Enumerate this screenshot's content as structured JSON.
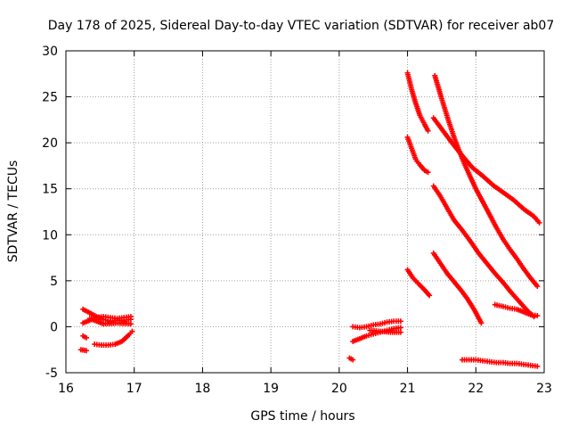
{
  "chart_data": {
    "type": "scatter",
    "title": "Day 178 of 2025, Sidereal Day-to-day VTEC variation (SDTVAR) for receiver ab07",
    "xlabel": "GPS time / hours",
    "ylabel": "SDTVAR / TECUs",
    "xlim": [
      16,
      23
    ],
    "ylim": [
      -5,
      30
    ],
    "xticks": [
      16,
      17,
      18,
      19,
      20,
      21,
      22,
      23
    ],
    "yticks": [
      -5,
      0,
      5,
      10,
      15,
      20,
      25,
      30
    ],
    "xtick_labels": [
      "16",
      "17",
      "18",
      "19",
      "20",
      "21",
      "22",
      "23"
    ],
    "ytick_labels": [
      "-5",
      "0",
      "5",
      "10",
      "15",
      "20",
      "25",
      "30"
    ],
    "grid": true,
    "marker": "+",
    "color": "#ff0000",
    "series": [
      {
        "name": "seg1",
        "x": [
          16.25,
          16.35,
          16.45,
          16.55,
          16.65,
          16.75,
          16.85,
          16.95
        ],
        "y": [
          0.4,
          0.7,
          1.0,
          1.1,
          1.0,
          0.9,
          1.0,
          1.1
        ]
      },
      {
        "name": "seg2",
        "x": [
          16.25,
          16.35,
          16.45,
          16.55,
          16.65,
          16.75,
          16.85,
          16.95
        ],
        "y": [
          1.9,
          1.5,
          1.1,
          0.8,
          0.6,
          0.7,
          0.7,
          0.8
        ]
      },
      {
        "name": "seg3",
        "x": [
          16.42,
          16.52,
          16.62,
          16.72,
          16.82,
          16.92,
          16.97
        ],
        "y": [
          -1.9,
          -2.0,
          -2.0,
          -1.9,
          -1.6,
          -0.9,
          -0.5
        ]
      },
      {
        "name": "seg4",
        "x": [
          16.25,
          16.3
        ],
        "y": [
          -1.0,
          -1.2
        ]
      },
      {
        "name": "seg5",
        "x": [
          16.22,
          16.3
        ],
        "y": [
          -2.5,
          -2.6
        ]
      },
      {
        "name": "seg6",
        "x": [
          16.35,
          16.55,
          16.75,
          16.95
        ],
        "y": [
          0.9,
          0.3,
          0.4,
          0.3
        ]
      },
      {
        "name": "seg7",
        "x": [
          20.2,
          20.3,
          20.4,
          20.5,
          20.6,
          20.7,
          20.8,
          20.9
        ],
        "y": [
          0.0,
          -0.1,
          0.0,
          0.2,
          0.3,
          0.5,
          0.6,
          0.6
        ]
      },
      {
        "name": "seg8",
        "x": [
          20.2,
          20.3,
          20.4,
          20.5,
          20.6,
          20.7,
          20.8,
          20.9
        ],
        "y": [
          -1.6,
          -1.3,
          -1.0,
          -0.8,
          -0.6,
          -0.4,
          -0.2,
          -0.1
        ]
      },
      {
        "name": "seg9",
        "x": [
          20.45,
          20.6,
          20.75,
          20.9
        ],
        "y": [
          -0.4,
          -0.5,
          -0.6,
          -0.6
        ]
      },
      {
        "name": "seg10",
        "x": [
          20.15,
          20.2
        ],
        "y": [
          -3.4,
          -3.6
        ]
      },
      {
        "name": "seg11",
        "x": [
          21.0,
          21.06,
          21.12,
          21.18,
          21.25,
          21.3
        ],
        "y": [
          27.6,
          25.8,
          24.3,
          23.0,
          22.0,
          21.3
        ]
      },
      {
        "name": "seg12",
        "x": [
          21.0,
          21.06,
          21.12,
          21.18,
          21.25,
          21.3
        ],
        "y": [
          20.6,
          19.4,
          18.2,
          17.6,
          17.0,
          16.8
        ]
      },
      {
        "name": "seg13",
        "x": [
          21.0,
          21.08,
          21.17,
          21.25,
          21.32
        ],
        "y": [
          6.2,
          5.3,
          4.6,
          4.0,
          3.4
        ]
      },
      {
        "name": "seg14",
        "x": [
          21.4,
          21.5,
          21.6,
          21.7,
          21.8,
          21.9,
          22.0,
          22.1,
          22.2,
          22.3,
          22.4,
          22.5,
          22.6,
          22.7,
          22.8,
          22.9
        ],
        "y": [
          27.3,
          24.8,
          22.4,
          20.2,
          18.3,
          16.6,
          15.0,
          13.6,
          12.2,
          10.8,
          9.5,
          8.4,
          7.4,
          6.3,
          5.3,
          4.4
        ]
      },
      {
        "name": "seg15",
        "x": [
          21.38,
          21.5,
          21.65,
          21.8,
          21.95,
          22.1,
          22.25,
          22.4,
          22.55,
          22.7,
          22.85,
          22.93
        ],
        "y": [
          22.7,
          21.5,
          20.0,
          18.6,
          17.3,
          16.4,
          15.4,
          14.6,
          13.8,
          12.8,
          12.0,
          11.3
        ]
      },
      {
        "name": "seg16",
        "x": [
          21.38,
          21.48,
          21.58,
          21.68,
          21.8,
          21.92,
          22.04,
          22.16,
          22.28,
          22.4,
          22.52,
          22.64,
          22.76,
          22.85
        ],
        "y": [
          15.3,
          14.2,
          12.9,
          11.6,
          10.5,
          9.3,
          8.0,
          6.9,
          5.8,
          4.8,
          3.7,
          2.7,
          1.7,
          1.1
        ]
      },
      {
        "name": "seg17",
        "x": [
          21.38,
          21.48,
          21.58,
          21.68,
          21.78,
          21.88,
          21.98,
          22.08
        ],
        "y": [
          8.0,
          6.9,
          5.8,
          4.9,
          4.0,
          3.0,
          1.8,
          0.4
        ]
      },
      {
        "name": "seg18",
        "x": [
          22.28,
          22.4,
          22.5,
          22.6,
          22.7,
          22.8,
          22.9
        ],
        "y": [
          2.4,
          2.2,
          2.0,
          1.9,
          1.6,
          1.3,
          1.2
        ]
      },
      {
        "name": "seg19",
        "x": [
          21.8,
          21.9,
          22.0,
          22.1,
          22.2,
          22.3,
          22.4,
          22.5,
          22.6,
          22.7,
          22.8,
          22.9
        ],
        "y": [
          -3.6,
          -3.6,
          -3.6,
          -3.7,
          -3.8,
          -3.9,
          -3.9,
          -4.0,
          -4.0,
          -4.1,
          -4.2,
          -4.3
        ]
      }
    ]
  }
}
